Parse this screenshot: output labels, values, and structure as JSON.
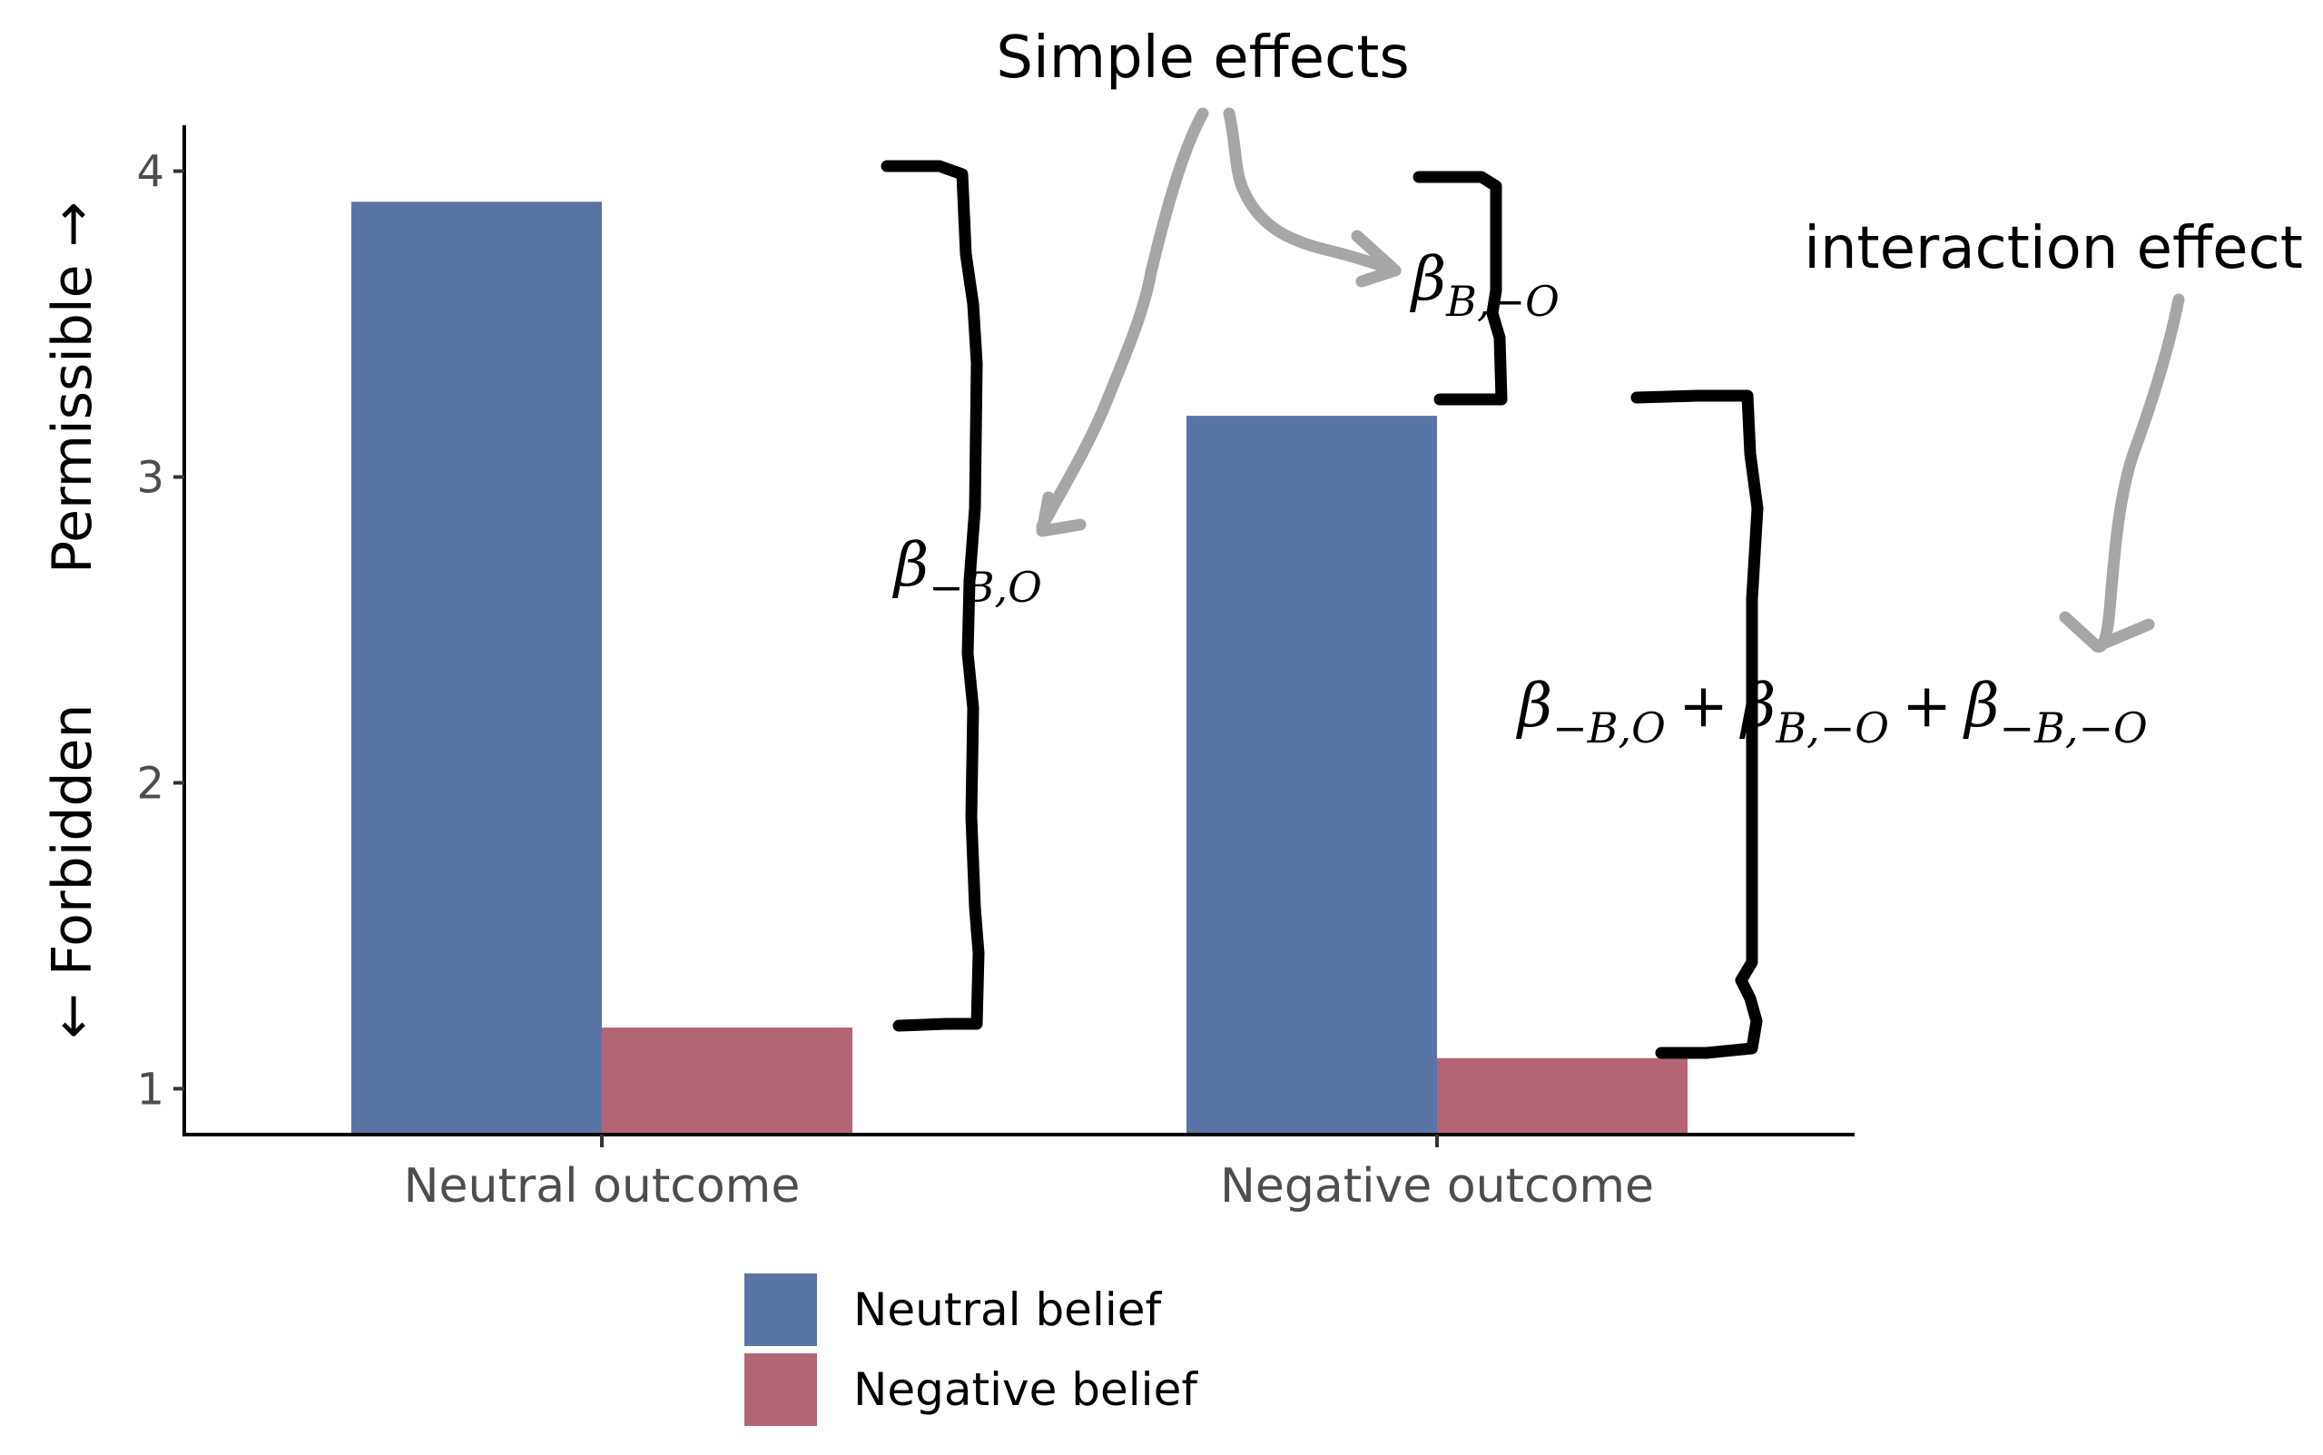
{
  "chart_data": {
    "type": "bar",
    "categories": [
      "Neutral outcome",
      "Negative outcome"
    ],
    "series": [
      {
        "name": "Neutral belief",
        "values": [
          3.9,
          3.2
        ],
        "color": "#5875a6"
      },
      {
        "name": "Negative belief",
        "values": [
          1.2,
          1.1
        ],
        "color": "#b36576"
      }
    ],
    "y_ticks": [
      1,
      2,
      3,
      4
    ],
    "ylim": [
      0.85,
      4.15
    ],
    "ylabel_top": "Permissible →",
    "ylabel_bottom": "← Forbidden",
    "xlabel": "",
    "legend_position": "bottom",
    "grid": false
  },
  "annotations": {
    "simple_effects": "Simple effects",
    "interaction_effect": "interaction effect",
    "beta_symbol": "β",
    "plus": "+",
    "beta_neg_b_o_sub": "−B,O",
    "beta_b_neg_o_sub": "B,−O",
    "beta_neg_b_neg_o_sub": "−B,−O"
  }
}
